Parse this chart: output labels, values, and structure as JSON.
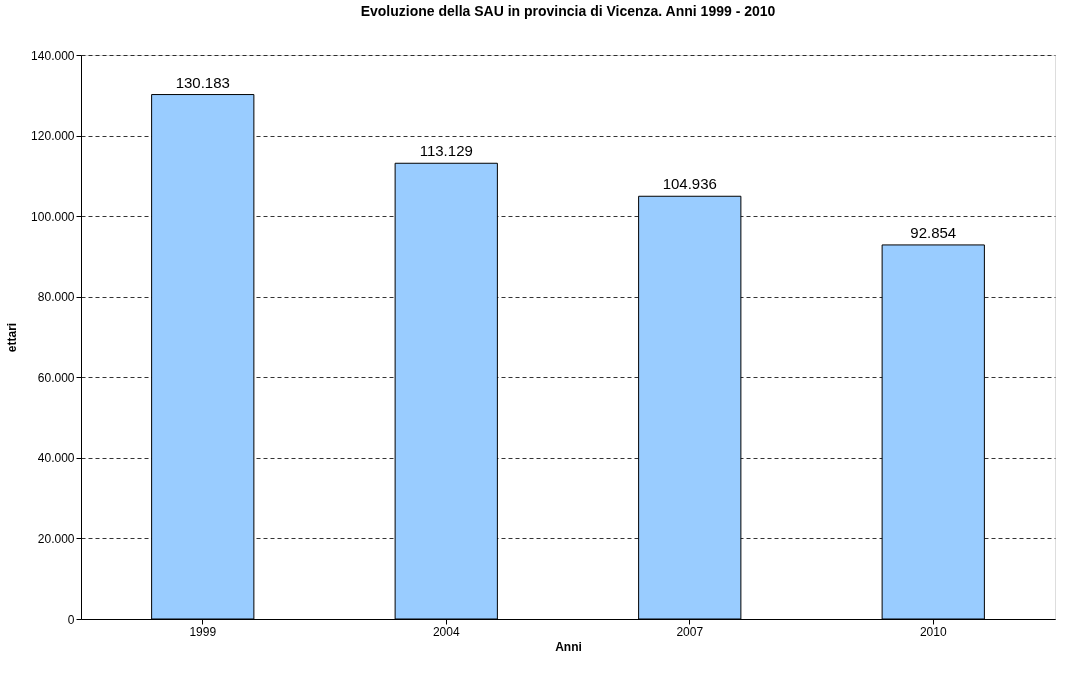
{
  "chart_data": {
    "type": "bar",
    "title": "Evoluzione della SAU in provincia di Vicenza.  Anni 1999 - 2010",
    "xlabel": "Anni",
    "ylabel": "ettari",
    "categories": [
      "1999",
      "2004",
      "2007",
      "2010"
    ],
    "values": [
      130183,
      113129,
      104936,
      92854
    ],
    "value_labels": [
      "130.183",
      "113.129",
      "104.936",
      "92.854"
    ],
    "color": "#99ccff",
    "ylim": [
      0,
      140000
    ],
    "yticks": [
      {
        "value": 0,
        "label": "0"
      },
      {
        "value": 20000,
        "label": "20.000"
      },
      {
        "value": 40000,
        "label": "40.000"
      },
      {
        "value": 60000,
        "label": "60.000"
      },
      {
        "value": 80000,
        "label": "80.000"
      },
      {
        "value": 100000,
        "label": "100.000"
      },
      {
        "value": 120000,
        "label": "120.000"
      },
      {
        "value": 140000,
        "label": "140.000"
      }
    ],
    "grid": "y",
    "line_style": "dashed"
  }
}
